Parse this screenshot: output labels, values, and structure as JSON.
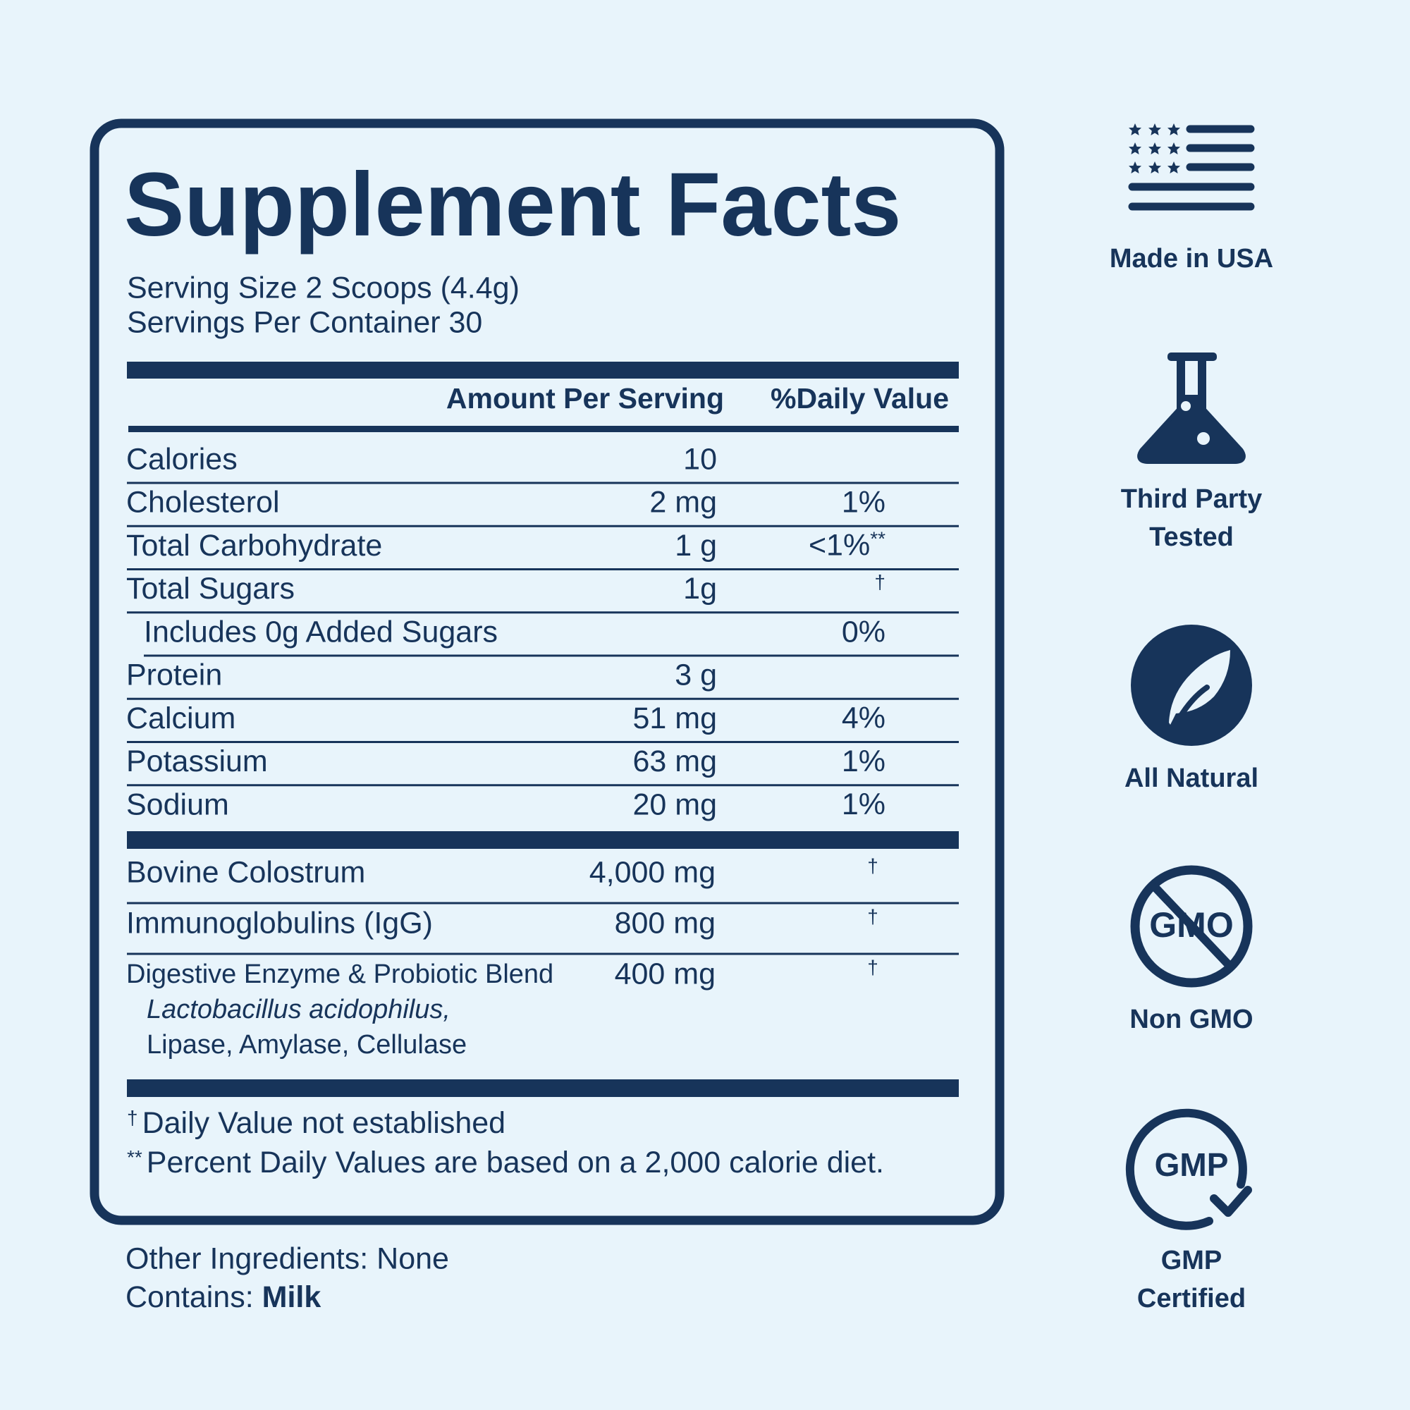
{
  "title": "Supplement Facts",
  "serving_size": "Serving Size 2 Scoops (4.4g)",
  "servings_per_container": "Servings Per Container 30",
  "table": {
    "header": [
      "Amount Per Serving",
      "%Daily Value"
    ],
    "nutrients": [
      {
        "name": "Calories",
        "amount": "10"
      },
      {
        "name": "Cholesterol",
        "amount": "2 mg",
        "dv": "1%"
      },
      {
        "name": "Total Carbohydrate",
        "amount": "1 g",
        "dv": "<1%",
        "dv_note": "**"
      },
      {
        "name": "Total Sugars",
        "amount": "1g",
        "dv": "†",
        "sub": {
          "name": "Includes 0g Added Sugars",
          "dv": "0%"
        }
      },
      {
        "name": "Protein",
        "amount": "3 g"
      },
      {
        "name": "Calcium",
        "amount": "51 mg",
        "dv": "4%"
      },
      {
        "name": "Potassium",
        "amount": "63 mg",
        "dv": "1%"
      },
      {
        "name": "Sodium",
        "amount": "20 mg",
        "dv": "1%"
      }
    ],
    "ingredients": [
      {
        "name": "Bovine Colostrum",
        "amount": "4,000 mg",
        "dv": "†"
      },
      {
        "name": "Immunoglobulins (IgG)",
        "amount": "800 mg",
        "dv": "†"
      },
      {
        "name": "Digestive Enzyme & Probiotic Blend",
        "amount": "400 mg",
        "dv": "†",
        "components": [
          "Lactobacillus acidophilus,",
          "Lipase, Amylase, Cellulase"
        ]
      }
    ]
  },
  "footnotes": [
    {
      "mark": "†",
      "text": "Daily Value not established"
    },
    {
      "mark": "**",
      "text": "Percent Daily Values are based on a 2,000 calorie diet."
    }
  ],
  "other_ingredients": "Other Ingredients: None",
  "contains": {
    "label": "Contains:",
    "value": "Milk"
  },
  "badges": [
    {
      "label": [
        "Made in USA"
      ]
    },
    {
      "label": [
        "Third Party",
        "Tested"
      ]
    },
    {
      "label": [
        "All Natural"
      ]
    },
    {
      "label": [
        "Non GMO"
      ],
      "icon_text": "GMO"
    },
    {
      "label": [
        "GMP",
        "Certified"
      ],
      "icon_text": "GMP"
    }
  ]
}
